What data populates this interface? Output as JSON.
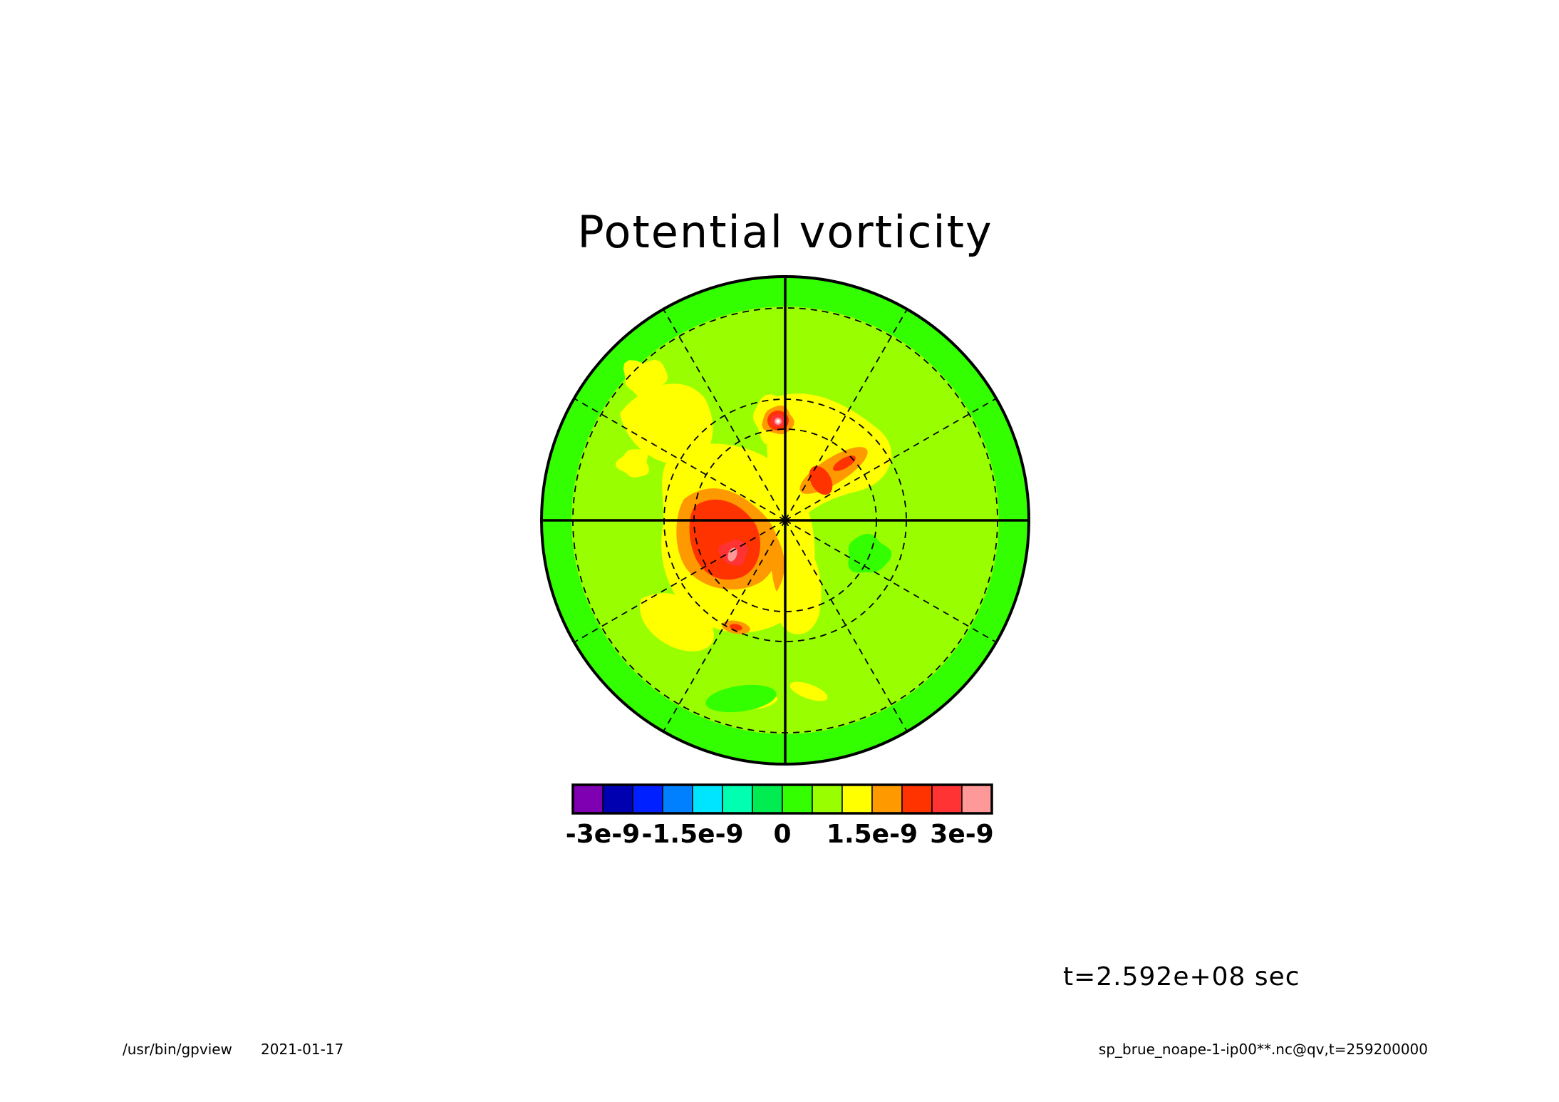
{
  "chart_data": {
    "type": "heatmap",
    "projection": "polar stereographic",
    "title": "Potential vorticity",
    "colorbar": {
      "colors": [
        "#7f00b2",
        "#0000b0",
        "#0020ff",
        "#0080ff",
        "#00e5ff",
        "#00ffb0",
        "#00ec50",
        "#33ff00",
        "#99ff00",
        "#ffff00",
        "#ff9900",
        "#ff3300",
        "#ff3333",
        "#ff9999"
      ],
      "tick_labels": [
        "-3e-9",
        "-1.5e-9",
        "0",
        "1.5e-9",
        "3e-9"
      ],
      "tick_values": [
        -3e-09,
        -1.5e-09,
        0,
        1.5e-09,
        3e-09
      ],
      "level_interval": 5e-10
    },
    "features": [
      {
        "region": "outer ring",
        "value_range": [
          0,
          5e-10
        ],
        "color": "#33ff00"
      },
      {
        "region": "interior",
        "value_range": [
          5e-10,
          1e-09
        ],
        "color": "#99ff00"
      },
      {
        "region": "south-west of pole",
        "peak_value": 3.5e-09,
        "colors": [
          "#ffff00",
          "#ff9900",
          "#ff3300",
          "#ff3333",
          "#ff9999"
        ]
      },
      {
        "region": "north of pole",
        "peak_value": 3.5e-09,
        "colors": [
          "#ffff00",
          "#ff9900",
          "#ff3300",
          "#ff3333",
          "#ff9999"
        ]
      },
      {
        "region": "north-east of pole",
        "peak_value": 2.5e-09,
        "colors": [
          "#ffff00",
          "#ff9900",
          "#ff3300"
        ]
      },
      {
        "region": "east of pole",
        "value_range": [
          0,
          5e-10
        ],
        "color": "#33ff00"
      }
    ],
    "grid": true
  },
  "time_label": "t=2.592e+08 sec",
  "footer": {
    "program": "/usr/bin/gpview",
    "date": "2021-01-17",
    "source": "sp_brue_noape-1-ip00**.nc@qv,t=259200000"
  }
}
